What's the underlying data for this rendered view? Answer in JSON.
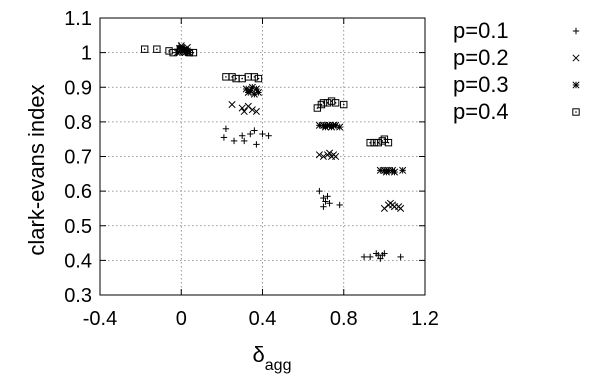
{
  "chart_data": {
    "type": "scatter",
    "title": "",
    "xlabel_main": "δ",
    "xlabel_sub": "agg",
    "ylabel": "clark-evans index",
    "xlim": [
      -0.4,
      1.2
    ],
    "ylim": [
      0.3,
      1.1
    ],
    "xticks": [
      "-0.4",
      "0",
      "0.4",
      "0.8",
      "1.2"
    ],
    "xtick_values": [
      -0.4,
      0,
      0.4,
      0.8,
      1.2
    ],
    "yticks": [
      "0.3",
      "0.4",
      "0.5",
      "0.6",
      "0.7",
      "0.8",
      "0.9",
      "1",
      "1.1"
    ],
    "ytick_values": [
      0.3,
      0.4,
      0.5,
      0.6,
      0.7,
      0.8,
      0.9,
      1.0,
      1.1
    ],
    "grid": true,
    "legend_position": "right",
    "series": [
      {
        "name": "p=0.1",
        "marker": "plus",
        "points": [
          [
            -0.01,
            1.02
          ],
          [
            0.0,
            1.01
          ],
          [
            0.02,
            1.0
          ],
          [
            0.01,
            1.015
          ],
          [
            0.03,
            1.005
          ],
          [
            -0.02,
            1.01
          ],
          [
            0.22,
            0.78
          ],
          [
            0.21,
            0.755
          ],
          [
            0.26,
            0.745
          ],
          [
            0.3,
            0.76
          ],
          [
            0.31,
            0.745
          ],
          [
            0.34,
            0.765
          ],
          [
            0.36,
            0.775
          ],
          [
            0.37,
            0.735
          ],
          [
            0.4,
            0.765
          ],
          [
            0.43,
            0.76
          ],
          [
            0.68,
            0.6
          ],
          [
            0.7,
            0.58
          ],
          [
            0.71,
            0.57
          ],
          [
            0.72,
            0.585
          ],
          [
            0.7,
            0.555
          ],
          [
            0.73,
            0.565
          ],
          [
            0.78,
            0.56
          ],
          [
            0.9,
            0.41
          ],
          [
            0.93,
            0.41
          ],
          [
            0.96,
            0.42
          ],
          [
            0.97,
            0.415
          ],
          [
            0.98,
            0.405
          ],
          [
            0.99,
            0.415
          ],
          [
            1.0,
            0.42
          ],
          [
            1.08,
            0.41
          ]
        ]
      },
      {
        "name": "p=0.2",
        "marker": "cross",
        "points": [
          [
            0.0,
            1.02
          ],
          [
            0.02,
            1.01
          ],
          [
            -0.01,
            1.0
          ],
          [
            0.03,
            1.015
          ],
          [
            0.01,
            1.005
          ],
          [
            0.25,
            0.85
          ],
          [
            0.3,
            0.84
          ],
          [
            0.31,
            0.83
          ],
          [
            0.33,
            0.845
          ],
          [
            0.35,
            0.835
          ],
          [
            0.37,
            0.83
          ],
          [
            0.68,
            0.705
          ],
          [
            0.7,
            0.7
          ],
          [
            0.72,
            0.705
          ],
          [
            0.73,
            0.71
          ],
          [
            0.74,
            0.7
          ],
          [
            0.75,
            0.705
          ],
          [
            0.76,
            0.7
          ],
          [
            1.0,
            0.55
          ],
          [
            1.02,
            0.56
          ],
          [
            1.03,
            0.565
          ],
          [
            1.04,
            0.56
          ],
          [
            1.05,
            0.555
          ],
          [
            1.07,
            0.555
          ],
          [
            1.08,
            0.55
          ]
        ]
      },
      {
        "name": "p=0.3",
        "marker": "star",
        "points": [
          [
            -0.02,
            1.0
          ],
          [
            0.0,
            1.01
          ],
          [
            0.02,
            1.0
          ],
          [
            0.03,
            1.005
          ],
          [
            0.04,
            1.0
          ],
          [
            0.32,
            0.895
          ],
          [
            0.33,
            0.885
          ],
          [
            0.34,
            0.89
          ],
          [
            0.35,
            0.9
          ],
          [
            0.36,
            0.88
          ],
          [
            0.37,
            0.895
          ],
          [
            0.38,
            0.885
          ],
          [
            0.68,
            0.79
          ],
          [
            0.7,
            0.79
          ],
          [
            0.71,
            0.785
          ],
          [
            0.72,
            0.79
          ],
          [
            0.73,
            0.79
          ],
          [
            0.74,
            0.785
          ],
          [
            0.75,
            0.79
          ],
          [
            0.76,
            0.79
          ],
          [
            0.78,
            0.785
          ],
          [
            0.98,
            0.66
          ],
          [
            1.0,
            0.66
          ],
          [
            1.01,
            0.655
          ],
          [
            1.02,
            0.66
          ],
          [
            1.04,
            0.66
          ],
          [
            1.05,
            0.655
          ],
          [
            1.09,
            0.66
          ]
        ]
      },
      {
        "name": "p=0.4",
        "marker": "boxdot",
        "points": [
          [
            -0.18,
            1.01
          ],
          [
            -0.12,
            1.01
          ],
          [
            -0.06,
            1.005
          ],
          [
            -0.04,
            1.0
          ],
          [
            0.0,
            1.01
          ],
          [
            0.02,
            1.005
          ],
          [
            0.04,
            1.0
          ],
          [
            0.06,
            1.0
          ],
          [
            0.22,
            0.93
          ],
          [
            0.25,
            0.93
          ],
          [
            0.27,
            0.925
          ],
          [
            0.3,
            0.925
          ],
          [
            0.33,
            0.93
          ],
          [
            0.36,
            0.93
          ],
          [
            0.38,
            0.925
          ],
          [
            0.67,
            0.84
          ],
          [
            0.69,
            0.85
          ],
          [
            0.7,
            0.855
          ],
          [
            0.72,
            0.855
          ],
          [
            0.74,
            0.86
          ],
          [
            0.76,
            0.855
          ],
          [
            0.8,
            0.85
          ],
          [
            0.93,
            0.74
          ],
          [
            0.95,
            0.74
          ],
          [
            0.97,
            0.74
          ],
          [
            0.99,
            0.745
          ],
          [
            1.0,
            0.75
          ],
          [
            1.02,
            0.74
          ]
        ]
      }
    ]
  }
}
